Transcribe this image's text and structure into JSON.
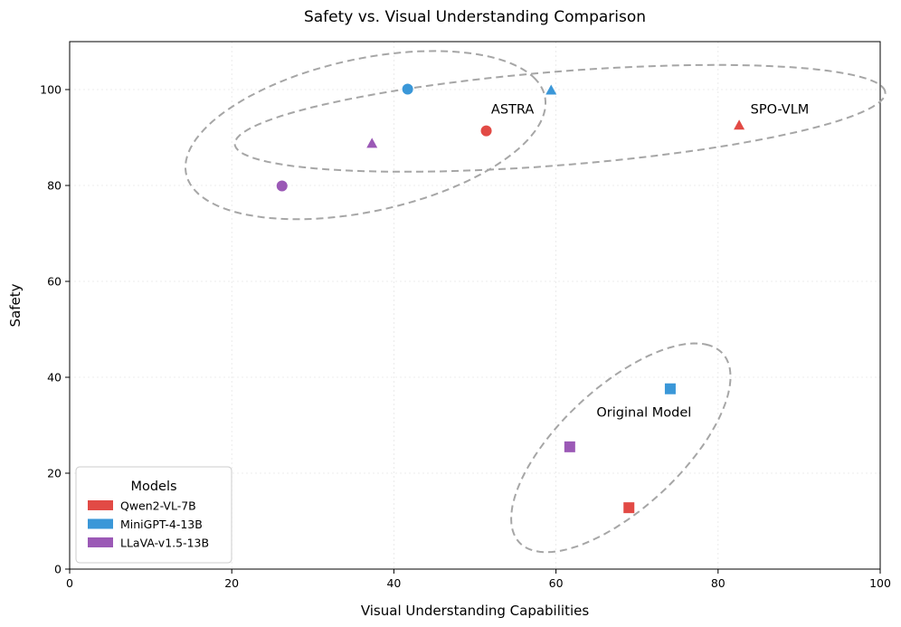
{
  "chart_data": {
    "type": "scatter",
    "title": "Safety vs. Visual Understanding Comparison",
    "xlabel": "Visual Understanding Capabilities",
    "ylabel": "Safety",
    "xlim": [
      0,
      100
    ],
    "ylim": [
      0,
      110
    ],
    "xticks": [
      "0",
      "20",
      "40",
      "60",
      "80",
      "100"
    ],
    "yticks": [
      "0",
      "20",
      "40",
      "60",
      "80",
      "100"
    ],
    "grid": true,
    "legend": {
      "title": "Models",
      "position": "bottom-left",
      "entries": [
        "Qwen2-VL-7B",
        "MiniGPT-4-13B",
        "LLaVA-v1.5-13B"
      ]
    },
    "model_colors": {
      "Qwen2-VL-7B": "#e24a45",
      "MiniGPT-4-13B": "#3a97d8",
      "LLaVA-v1.5-13B": "#9b59b6"
    },
    "points": [
      {
        "model": "Qwen2-VL-7B",
        "method": "Original Model",
        "marker": "square",
        "x": 69.0,
        "y": 12.8
      },
      {
        "model": "MiniGPT-4-13B",
        "method": "Original Model",
        "marker": "square",
        "x": 74.1,
        "y": 37.6
      },
      {
        "model": "LLaVA-v1.5-13B",
        "method": "Original Model",
        "marker": "square",
        "x": 61.7,
        "y": 25.5
      },
      {
        "model": "Qwen2-VL-7B",
        "method": "ASTRA",
        "marker": "circle",
        "x": 51.4,
        "y": 91.4
      },
      {
        "model": "MiniGPT-4-13B",
        "method": "ASTRA",
        "marker": "circle",
        "x": 41.7,
        "y": 100.1
      },
      {
        "model": "LLaVA-v1.5-13B",
        "method": "ASTRA",
        "marker": "circle",
        "x": 26.2,
        "y": 79.9
      },
      {
        "model": "Qwen2-VL-7B",
        "method": "SPO-VLM",
        "marker": "triangle",
        "x": 82.6,
        "y": 92.6
      },
      {
        "model": "MiniGPT-4-13B",
        "method": "SPO-VLM",
        "marker": "triangle",
        "x": 59.4,
        "y": 99.9
      },
      {
        "model": "LLaVA-v1.5-13B",
        "method": "SPO-VLM",
        "marker": "triangle",
        "x": 37.3,
        "y": 88.8
      }
    ],
    "groups": [
      {
        "label": "ASTRA",
        "cx": 36.5,
        "cy": 90.5,
        "rx": 24,
        "ry": 15,
        "angle": 29,
        "label_x": 52.0,
        "label_y": 95.0
      },
      {
        "label": "SPO-VLM",
        "cx": 60.5,
        "cy": 94.0,
        "rx": 40.5,
        "ry": 9.7,
        "angle": 8,
        "label_x": 84.0,
        "label_y": 95.0
      },
      {
        "label": "Original Model",
        "cx": 68.0,
        "cy": 25.3,
        "rx": 24,
        "ry": 9.0,
        "angle": 63,
        "label_x": 65.0,
        "label_y": 31.8
      }
    ]
  }
}
